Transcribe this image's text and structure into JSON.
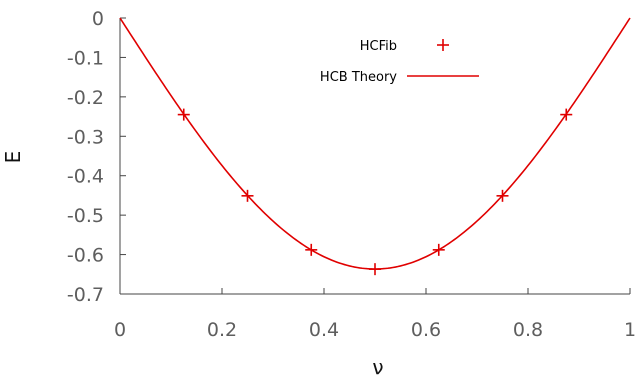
{
  "chart_data": {
    "type": "line",
    "title": "",
    "xlabel": "ν",
    "ylabel": "E",
    "xlim": [
      0,
      1
    ],
    "ylim": [
      -0.7,
      0
    ],
    "x_ticks": [
      0,
      0.2,
      0.4,
      0.6,
      0.8,
      1
    ],
    "x_tick_labels": [
      "0",
      "0.2",
      "0.4",
      "0.6",
      "0.8",
      "1"
    ],
    "y_ticks": [
      0,
      -0.1,
      -0.2,
      -0.3,
      -0.4,
      -0.5,
      -0.6,
      -0.7
    ],
    "y_tick_labels": [
      "0",
      "-0.1",
      "-0.2",
      "-0.3",
      "-0.4",
      "-0.5",
      "-0.6",
      "-0.7"
    ],
    "grid": false,
    "legend_position": "top-right",
    "series": [
      {
        "name": "HCFib",
        "kind": "scatter",
        "marker": "plus",
        "color": "#e00000",
        "x": [
          0.125,
          0.25,
          0.375,
          0.5,
          0.625,
          0.75,
          0.875
        ],
        "y": [
          -0.245,
          -0.451,
          -0.588,
          -0.637,
          -0.588,
          -0.451,
          -0.245
        ]
      },
      {
        "name": "HCB Theory",
        "kind": "line",
        "function": "-(2/π)·sin(πν)",
        "color": "#e00000",
        "x_range": [
          0,
          1
        ]
      }
    ]
  }
}
